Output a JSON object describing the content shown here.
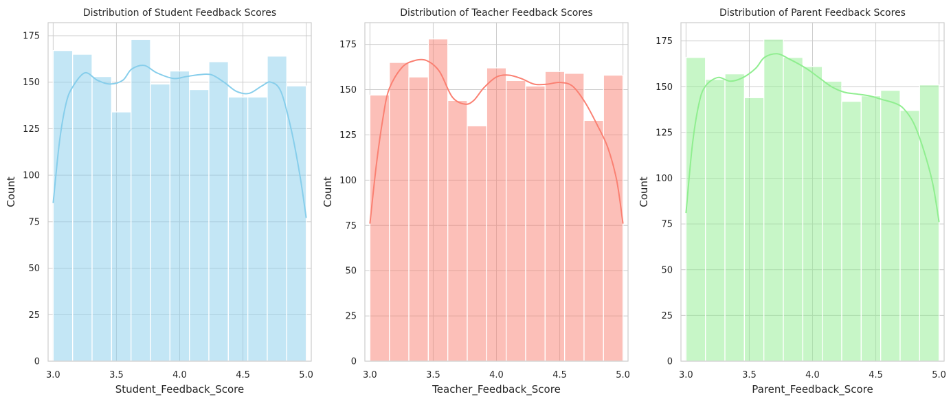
{
  "chart_data": [
    {
      "type": "histogram",
      "title": "Distribution of Student Feedback Scores",
      "xlabel": "Student_Feedback_Score",
      "ylabel": "Count",
      "xlim": [
        2.96,
        5.04
      ],
      "ylim": [
        0,
        182
      ],
      "xticks": [
        "3.0",
        "3.5",
        "4.0",
        "4.5",
        "5.0"
      ],
      "xtick_values": [
        3.0,
        3.5,
        4.0,
        4.5,
        5.0
      ],
      "yticks": [
        "0",
        "25",
        "50",
        "75",
        "100",
        "125",
        "150",
        "175"
      ],
      "ytick_values": [
        0,
        25,
        50,
        75,
        100,
        125,
        150,
        175
      ],
      "bin_start": 3.0,
      "bin_end": 5.0,
      "values": [
        167,
        165,
        153,
        134,
        173,
        149,
        156,
        146,
        161,
        142,
        142,
        164,
        148
      ],
      "kde_x": [
        3.0,
        3.05,
        3.1,
        3.15,
        3.25,
        3.35,
        3.45,
        3.55,
        3.62,
        3.72,
        3.82,
        3.95,
        4.05,
        4.15,
        4.25,
        4.35,
        4.45,
        4.55,
        4.65,
        4.72,
        4.8,
        4.88,
        4.95,
        5.0
      ],
      "kde_y": [
        85,
        118,
        138,
        147,
        155,
        151,
        149,
        151,
        157,
        159,
        155,
        152,
        153,
        154,
        154,
        150,
        145,
        144,
        148,
        150,
        145,
        125,
        100,
        77
      ],
      "color": "#87ceeb",
      "bar_fill": "#c3e6f4",
      "grid": true
    },
    {
      "type": "histogram",
      "title": "Distribution of Teacher Feedback Scores",
      "xlabel": "Teacher_Feedback_Score",
      "ylabel": "Count",
      "xlim": [
        2.96,
        5.04
      ],
      "ylim": [
        0,
        187
      ],
      "xticks": [
        "3.0",
        "3.5",
        "4.0",
        "4.5",
        "5.0"
      ],
      "xtick_values": [
        3.0,
        3.5,
        4.0,
        4.5,
        5.0
      ],
      "yticks": [
        "0",
        "25",
        "50",
        "75",
        "100",
        "125",
        "150",
        "175"
      ],
      "ytick_values": [
        0,
        25,
        50,
        75,
        100,
        125,
        150,
        175
      ],
      "bin_start": 3.0,
      "bin_end": 5.0,
      "values": [
        147,
        165,
        157,
        178,
        144,
        130,
        162,
        155,
        152,
        160,
        159,
        133,
        158
      ],
      "kde_x": [
        3.0,
        3.05,
        3.1,
        3.15,
        3.25,
        3.35,
        3.45,
        3.55,
        3.65,
        3.75,
        3.82,
        3.9,
        4.0,
        4.1,
        4.2,
        4.3,
        4.4,
        4.5,
        4.6,
        4.7,
        4.8,
        4.88,
        4.95,
        5.0
      ],
      "kde_y": [
        76,
        108,
        133,
        150,
        162,
        166,
        166,
        160,
        146,
        142,
        144,
        151,
        157,
        158,
        156,
        153,
        153,
        154,
        152,
        143,
        130,
        118,
        100,
        76
      ],
      "color": "#fa8072",
      "bar_fill": "#fbbcb5",
      "grid": true
    },
    {
      "type": "histogram",
      "title": "Distribution of Parent Feedback Scores",
      "xlabel": "Parent_Feedback_Score",
      "ylabel": "Count",
      "xlim": [
        2.96,
        5.04
      ],
      "ylim": [
        0,
        185
      ],
      "xticks": [
        "3.0",
        "3.5",
        "4.0",
        "4.5",
        "5.0"
      ],
      "xtick_values": [
        3.0,
        3.5,
        4.0,
        4.5,
        5.0
      ],
      "yticks": [
        "0",
        "25",
        "50",
        "75",
        "100",
        "125",
        "150",
        "175"
      ],
      "ytick_values": [
        0,
        25,
        50,
        75,
        100,
        125,
        150,
        175
      ],
      "bin_start": 3.0,
      "bin_end": 5.0,
      "values": [
        166,
        154,
        157,
        144,
        176,
        166,
        161,
        153,
        142,
        145,
        148,
        137,
        151
      ],
      "kde_x": [
        3.0,
        3.05,
        3.1,
        3.15,
        3.25,
        3.35,
        3.45,
        3.55,
        3.62,
        3.72,
        3.82,
        3.95,
        4.05,
        4.15,
        4.25,
        4.35,
        4.45,
        4.55,
        4.65,
        4.72,
        4.8,
        4.88,
        4.95,
        5.0
      ],
      "kde_y": [
        81,
        118,
        140,
        150,
        155,
        153,
        155,
        160,
        166,
        168,
        165,
        160,
        155,
        150,
        147,
        146,
        145,
        143,
        141,
        138,
        130,
        115,
        97,
        76
      ],
      "color": "#90ee90",
      "bar_fill": "#c5f4c5",
      "grid": true
    }
  ]
}
